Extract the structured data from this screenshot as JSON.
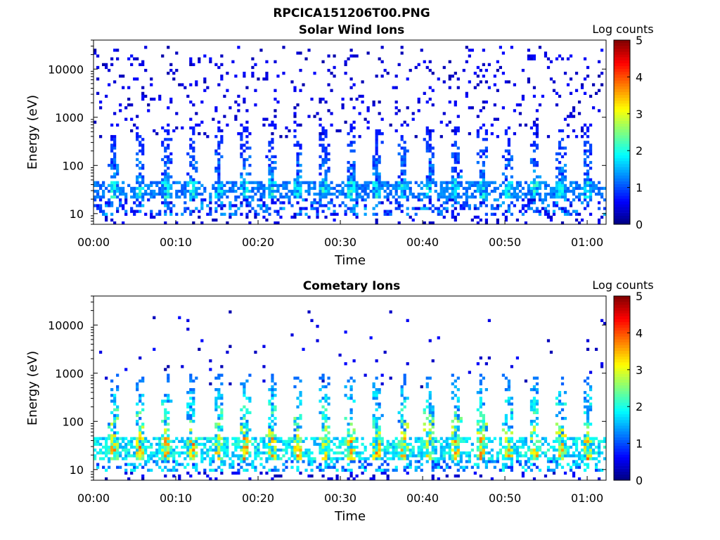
{
  "figure": {
    "title": "RPCICA151206T00.PNG"
  },
  "chart_data": [
    {
      "type": "heatmap",
      "title": "Solar Wind Ions",
      "xlabel": "Time",
      "ylabel": "Energy (eV)",
      "x_ticks": [
        "00:00",
        "00:10",
        "00:20",
        "00:30",
        "00:40",
        "00:50",
        "01:00"
      ],
      "x_tick_minutes": [
        0,
        10,
        20,
        30,
        40,
        50,
        60
      ],
      "xlim_minutes": [
        0,
        62.3
      ],
      "y_ticks": [
        "10",
        "100",
        "1000",
        "10000"
      ],
      "y_tick_values": [
        10,
        100,
        1000,
        10000
      ],
      "y_scale": "log",
      "ylim": [
        6,
        40000
      ],
      "colorbar": {
        "label": "Log counts",
        "ticks": [
          "0",
          "1",
          "2",
          "3",
          "4",
          "5"
        ],
        "range": [
          0,
          5
        ],
        "colormap": "jet"
      },
      "features": {
        "sweep_period_minutes": 3.2,
        "sweep_count": 19,
        "core_energy_eV": [
          20,
          45
        ],
        "core_peak_log_counts": 2.5,
        "vertical_spikes_up_to_eV": 700,
        "sparse_background_up_to_eV": 30000,
        "background_log_counts": 0.4
      }
    },
    {
      "type": "heatmap",
      "title": "Cometary Ions",
      "xlabel": "Time",
      "ylabel": "Energy (eV)",
      "x_ticks": [
        "00:00",
        "00:10",
        "00:20",
        "00:30",
        "00:40",
        "00:50",
        "01:00"
      ],
      "x_tick_minutes": [
        0,
        10,
        20,
        30,
        40,
        50,
        60
      ],
      "xlim_minutes": [
        0,
        62.3
      ],
      "y_ticks": [
        "10",
        "100",
        "1000",
        "10000"
      ],
      "y_tick_values": [
        10,
        100,
        1000,
        10000
      ],
      "y_scale": "log",
      "ylim": [
        6,
        40000
      ],
      "colorbar": {
        "label": "Log counts",
        "ticks": [
          "0",
          "1",
          "2",
          "3",
          "4",
          "5"
        ],
        "range": [
          0,
          5
        ],
        "colormap": "jet"
      },
      "features": {
        "sweep_period_minutes": 3.2,
        "sweep_count": 19,
        "core_energy_eV": [
          15,
          45
        ],
        "core_peak_log_counts": 3.8,
        "vertical_spikes_up_to_eV": 1000,
        "sparse_background_up_to_eV": 20000,
        "background_log_counts": 0.8
      }
    }
  ]
}
